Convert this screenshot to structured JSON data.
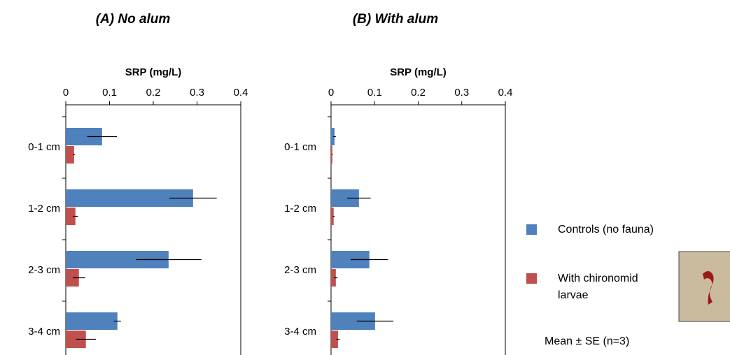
{
  "chart_data": [
    {
      "type": "hbar",
      "title": "(A) No alum",
      "x_label": "SRP (mg/L)",
      "categories": [
        "0-1 cm",
        "1-2 cm",
        "2-3 cm",
        "3-4 cm"
      ],
      "series": [
        {
          "name": "Controls (no fauna)",
          "color": "#4f81bd",
          "values": [
            0.083,
            0.291,
            0.235,
            0.118
          ],
          "errors": [
            0.034,
            0.054,
            0.075,
            0.008
          ]
        },
        {
          "name": "With chironomid larvae",
          "color": "#c0504d",
          "values": [
            0.019,
            0.022,
            0.03,
            0.046
          ],
          "errors": [
            0.002,
            0.006,
            0.014,
            0.023
          ]
        }
      ],
      "xlim": [
        0,
        0.4
      ],
      "xticks": [
        0,
        0.1,
        0.2,
        0.3,
        0.4
      ],
      "annotation": "Mean ± SE (n=3)"
    },
    {
      "type": "hbar",
      "title": "(B) With alum",
      "x_label": "SRP (mg/L)",
      "categories": [
        "0-1 cm",
        "1-2 cm",
        "2-3 cm",
        "3-4 cm"
      ],
      "series": [
        {
          "color": "#4f81bd",
          "values": [
            0.008,
            0.064,
            0.088,
            0.101
          ],
          "errors": [
            0.003,
            0.027,
            0.043,
            0.042
          ]
        },
        {
          "color": "#c0504d",
          "values": [
            0.003,
            0.006,
            0.011,
            0.016
          ],
          "errors": [
            0.001,
            0.002,
            0.004,
            0.004
          ]
        }
      ],
      "xlim": [
        0,
        0.4
      ],
      "xticks": [
        0,
        0.1,
        0.2,
        0.3,
        0.4
      ]
    }
  ]
}
